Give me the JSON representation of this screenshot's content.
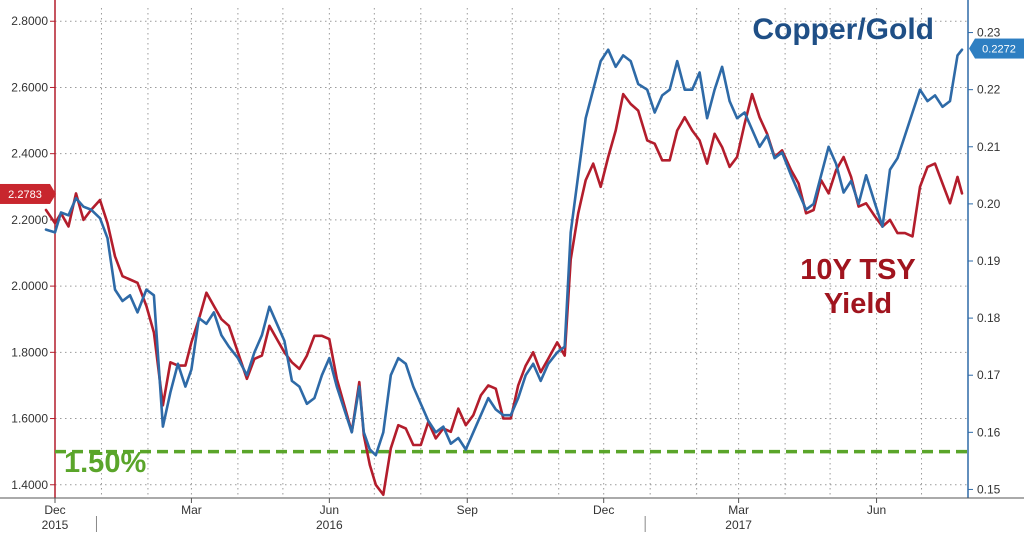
{
  "chart_data": {
    "type": "line",
    "left_axis": {
      "range": [
        1.36,
        2.84
      ],
      "ticks": [
        "1.4000",
        "1.6000",
        "1.8000",
        "2.0000",
        "2.2000",
        "2.4000",
        "2.6000",
        "2.8000"
      ],
      "tick_values": [
        1.4,
        1.6,
        1.8,
        2.0,
        2.2,
        2.4,
        2.6,
        2.8
      ]
    },
    "right_axis": {
      "range": [
        0.1485,
        0.2343
      ],
      "ticks": [
        "0.15",
        "0.16",
        "0.17",
        "0.18",
        "0.19",
        "0.20",
        "0.21",
        "0.22",
        "0.23"
      ],
      "tick_values": [
        0.15,
        0.16,
        0.17,
        0.18,
        0.19,
        0.2,
        0.21,
        0.22,
        0.23
      ]
    },
    "x_axis": {
      "start": "2015-12-01",
      "end": "2017-08-01",
      "month_labels": [
        {
          "date": "2015-12-01",
          "label": "Dec"
        },
        {
          "date": "2016-03-01",
          "label": "Mar"
        },
        {
          "date": "2016-06-01",
          "label": "Jun"
        },
        {
          "date": "2016-09-01",
          "label": "Sep"
        },
        {
          "date": "2016-12-01",
          "label": "Dec"
        },
        {
          "date": "2017-03-01",
          "label": "Mar"
        },
        {
          "date": "2017-06-01",
          "label": "Jun"
        }
      ],
      "year_labels": [
        {
          "date": "2015-12-01",
          "label": "2015"
        },
        {
          "date": "2016-06-01",
          "label": "2016"
        },
        {
          "date": "2017-03-01",
          "label": "2017"
        }
      ],
      "grid_dates": [
        "2016-01-01",
        "2016-02-01",
        "2016-03-01",
        "2016-04-01",
        "2016-05-01",
        "2016-06-01",
        "2016-07-01",
        "2016-08-01",
        "2016-09-01",
        "2016-10-01",
        "2016-11-01",
        "2016-12-01",
        "2017-01-01",
        "2017-02-01",
        "2017-03-01",
        "2017-04-01",
        "2017-05-01",
        "2017-06-01",
        "2017-07-01"
      ]
    },
    "grid": true,
    "series": [
      {
        "name": "10Y TSY Yield",
        "axis": "left",
        "color": "#b31d2c",
        "label_lines": [
          "10Y TSY",
          "Yield"
        ],
        "last_value_label": "2.2783",
        "points": [
          [
            "2015-11-25",
            2.23
          ],
          [
            "2015-12-01",
            2.19
          ],
          [
            "2015-12-05",
            2.22
          ],
          [
            "2015-12-10",
            2.18
          ],
          [
            "2015-12-15",
            2.28
          ],
          [
            "2015-12-20",
            2.2
          ],
          [
            "2015-12-25",
            2.23
          ],
          [
            "2015-12-31",
            2.26
          ],
          [
            "2016-01-05",
            2.19
          ],
          [
            "2016-01-10",
            2.09
          ],
          [
            "2016-01-15",
            2.03
          ],
          [
            "2016-01-20",
            2.02
          ],
          [
            "2016-01-25",
            2.01
          ],
          [
            "2016-01-31",
            1.94
          ],
          [
            "2016-02-05",
            1.86
          ],
          [
            "2016-02-11",
            1.64
          ],
          [
            "2016-02-16",
            1.77
          ],
          [
            "2016-02-21",
            1.76
          ],
          [
            "2016-02-26",
            1.76
          ],
          [
            "2016-03-01",
            1.83
          ],
          [
            "2016-03-06",
            1.9
          ],
          [
            "2016-03-11",
            1.98
          ],
          [
            "2016-03-16",
            1.94
          ],
          [
            "2016-03-21",
            1.9
          ],
          [
            "2016-03-26",
            1.88
          ],
          [
            "2016-04-01",
            1.8
          ],
          [
            "2016-04-07",
            1.72
          ],
          [
            "2016-04-12",
            1.78
          ],
          [
            "2016-04-17",
            1.79
          ],
          [
            "2016-04-22",
            1.88
          ],
          [
            "2016-04-27",
            1.84
          ],
          [
            "2016-05-02",
            1.8
          ],
          [
            "2016-05-07",
            1.77
          ],
          [
            "2016-05-12",
            1.75
          ],
          [
            "2016-05-17",
            1.79
          ],
          [
            "2016-05-22",
            1.85
          ],
          [
            "2016-05-27",
            1.85
          ],
          [
            "2016-06-01",
            1.84
          ],
          [
            "2016-06-06",
            1.72
          ],
          [
            "2016-06-11",
            1.64
          ],
          [
            "2016-06-16",
            1.56
          ],
          [
            "2016-06-21",
            1.71
          ],
          [
            "2016-06-24",
            1.55
          ],
          [
            "2016-06-28",
            1.46
          ],
          [
            "2016-07-02",
            1.4
          ],
          [
            "2016-07-07",
            1.37
          ],
          [
            "2016-07-12",
            1.51
          ],
          [
            "2016-07-17",
            1.58
          ],
          [
            "2016-07-22",
            1.57
          ],
          [
            "2016-07-27",
            1.52
          ],
          [
            "2016-08-01",
            1.52
          ],
          [
            "2016-08-06",
            1.59
          ],
          [
            "2016-08-11",
            1.54
          ],
          [
            "2016-08-16",
            1.57
          ],
          [
            "2016-08-21",
            1.56
          ],
          [
            "2016-08-26",
            1.63
          ],
          [
            "2016-08-31",
            1.58
          ],
          [
            "2016-09-05",
            1.61
          ],
          [
            "2016-09-10",
            1.67
          ],
          [
            "2016-09-15",
            1.7
          ],
          [
            "2016-09-20",
            1.69
          ],
          [
            "2016-09-25",
            1.6
          ],
          [
            "2016-09-30",
            1.6
          ],
          [
            "2016-10-05",
            1.7
          ],
          [
            "2016-10-10",
            1.76
          ],
          [
            "2016-10-15",
            1.8
          ],
          [
            "2016-10-20",
            1.74
          ],
          [
            "2016-10-25",
            1.78
          ],
          [
            "2016-10-31",
            1.83
          ],
          [
            "2016-11-05",
            1.79
          ],
          [
            "2016-11-09",
            2.08
          ],
          [
            "2016-11-14",
            2.22
          ],
          [
            "2016-11-19",
            2.32
          ],
          [
            "2016-11-24",
            2.37
          ],
          [
            "2016-11-29",
            2.3
          ],
          [
            "2016-12-04",
            2.39
          ],
          [
            "2016-12-09",
            2.47
          ],
          [
            "2016-12-14",
            2.58
          ],
          [
            "2016-12-19",
            2.55
          ],
          [
            "2016-12-24",
            2.53
          ],
          [
            "2016-12-30",
            2.44
          ],
          [
            "2017-01-04",
            2.43
          ],
          [
            "2017-01-09",
            2.38
          ],
          [
            "2017-01-14",
            2.38
          ],
          [
            "2017-01-19",
            2.47
          ],
          [
            "2017-01-24",
            2.51
          ],
          [
            "2017-01-29",
            2.47
          ],
          [
            "2017-02-03",
            2.44
          ],
          [
            "2017-02-08",
            2.37
          ],
          [
            "2017-02-13",
            2.46
          ],
          [
            "2017-02-18",
            2.42
          ],
          [
            "2017-02-23",
            2.36
          ],
          [
            "2017-02-28",
            2.39
          ],
          [
            "2017-03-05",
            2.49
          ],
          [
            "2017-03-10",
            2.58
          ],
          [
            "2017-03-15",
            2.51
          ],
          [
            "2017-03-20",
            2.46
          ],
          [
            "2017-03-25",
            2.39
          ],
          [
            "2017-03-30",
            2.41
          ],
          [
            "2017-04-05",
            2.35
          ],
          [
            "2017-04-10",
            2.31
          ],
          [
            "2017-04-15",
            2.22
          ],
          [
            "2017-04-20",
            2.23
          ],
          [
            "2017-04-25",
            2.32
          ],
          [
            "2017-04-30",
            2.28
          ],
          [
            "2017-05-05",
            2.35
          ],
          [
            "2017-05-10",
            2.39
          ],
          [
            "2017-05-15",
            2.33
          ],
          [
            "2017-05-20",
            2.24
          ],
          [
            "2017-05-25",
            2.25
          ],
          [
            "2017-05-31",
            2.21
          ],
          [
            "2017-06-05",
            2.18
          ],
          [
            "2017-06-10",
            2.2
          ],
          [
            "2017-06-15",
            2.16
          ],
          [
            "2017-06-20",
            2.16
          ],
          [
            "2017-06-25",
            2.15
          ],
          [
            "2017-06-30",
            2.3
          ],
          [
            "2017-07-05",
            2.36
          ],
          [
            "2017-07-10",
            2.37
          ],
          [
            "2017-07-15",
            2.31
          ],
          [
            "2017-07-20",
            2.25
          ],
          [
            "2017-07-25",
            2.33
          ],
          [
            "2017-07-28",
            2.28
          ]
        ]
      },
      {
        "name": "Copper/Gold",
        "axis": "right",
        "color": "#2e6aa7",
        "label_lines": [
          "Copper/Gold"
        ],
        "last_value_label": "0.2272",
        "points": [
          [
            "2015-11-25",
            0.1955
          ],
          [
            "2015-12-01",
            0.195
          ],
          [
            "2015-12-05",
            0.1985
          ],
          [
            "2015-12-10",
            0.198
          ],
          [
            "2015-12-15",
            0.201
          ],
          [
            "2015-12-20",
            0.1995
          ],
          [
            "2015-12-25",
            0.199
          ],
          [
            "2015-12-31",
            0.1975
          ],
          [
            "2016-01-05",
            0.194
          ],
          [
            "2016-01-10",
            0.185
          ],
          [
            "2016-01-15",
            0.183
          ],
          [
            "2016-01-20",
            0.184
          ],
          [
            "2016-01-25",
            0.181
          ],
          [
            "2016-01-31",
            0.185
          ],
          [
            "2016-02-05",
            0.184
          ],
          [
            "2016-02-11",
            0.161
          ],
          [
            "2016-02-16",
            0.167
          ],
          [
            "2016-02-21",
            0.172
          ],
          [
            "2016-02-26",
            0.168
          ],
          [
            "2016-03-01",
            0.171
          ],
          [
            "2016-03-06",
            0.18
          ],
          [
            "2016-03-11",
            0.179
          ],
          [
            "2016-03-16",
            0.181
          ],
          [
            "2016-03-21",
            0.177
          ],
          [
            "2016-03-26",
            0.175
          ],
          [
            "2016-04-01",
            0.173
          ],
          [
            "2016-04-07",
            0.17
          ],
          [
            "2016-04-12",
            0.174
          ],
          [
            "2016-04-17",
            0.177
          ],
          [
            "2016-04-22",
            0.182
          ],
          [
            "2016-04-27",
            0.179
          ],
          [
            "2016-05-02",
            0.176
          ],
          [
            "2016-05-07",
            0.169
          ],
          [
            "2016-05-12",
            0.168
          ],
          [
            "2016-05-17",
            0.165
          ],
          [
            "2016-05-22",
            0.166
          ],
          [
            "2016-05-27",
            0.17
          ],
          [
            "2016-06-01",
            0.173
          ],
          [
            "2016-06-06",
            0.168
          ],
          [
            "2016-06-11",
            0.164
          ],
          [
            "2016-06-16",
            0.16
          ],
          [
            "2016-06-21",
            0.168
          ],
          [
            "2016-06-24",
            0.16
          ],
          [
            "2016-06-28",
            0.157
          ],
          [
            "2016-07-02",
            0.156
          ],
          [
            "2016-07-07",
            0.16
          ],
          [
            "2016-07-12",
            0.17
          ],
          [
            "2016-07-17",
            0.173
          ],
          [
            "2016-07-22",
            0.172
          ],
          [
            "2016-07-27",
            0.168
          ],
          [
            "2016-08-01",
            0.165
          ],
          [
            "2016-08-06",
            0.162
          ],
          [
            "2016-08-11",
            0.16
          ],
          [
            "2016-08-16",
            0.161
          ],
          [
            "2016-08-21",
            0.158
          ],
          [
            "2016-08-26",
            0.159
          ],
          [
            "2016-08-31",
            0.157
          ],
          [
            "2016-09-05",
            0.16
          ],
          [
            "2016-09-10",
            0.163
          ],
          [
            "2016-09-15",
            0.166
          ],
          [
            "2016-09-20",
            0.164
          ],
          [
            "2016-09-25",
            0.163
          ],
          [
            "2016-09-30",
            0.163
          ],
          [
            "2016-10-05",
            0.166
          ],
          [
            "2016-10-10",
            0.17
          ],
          [
            "2016-10-15",
            0.172
          ],
          [
            "2016-10-20",
            0.169
          ],
          [
            "2016-10-25",
            0.172
          ],
          [
            "2016-10-31",
            0.174
          ],
          [
            "2016-11-05",
            0.175
          ],
          [
            "2016-11-09",
            0.195
          ],
          [
            "2016-11-14",
            0.205
          ],
          [
            "2016-11-19",
            0.215
          ],
          [
            "2016-11-24",
            0.22
          ],
          [
            "2016-11-29",
            0.225
          ],
          [
            "2016-12-04",
            0.227
          ],
          [
            "2016-12-09",
            0.224
          ],
          [
            "2016-12-14",
            0.226
          ],
          [
            "2016-12-19",
            0.225
          ],
          [
            "2016-12-24",
            0.221
          ],
          [
            "2016-12-30",
            0.22
          ],
          [
            "2017-01-04",
            0.216
          ],
          [
            "2017-01-09",
            0.219
          ],
          [
            "2017-01-14",
            0.22
          ],
          [
            "2017-01-19",
            0.225
          ],
          [
            "2017-01-24",
            0.22
          ],
          [
            "2017-01-29",
            0.22
          ],
          [
            "2017-02-03",
            0.223
          ],
          [
            "2017-02-08",
            0.215
          ],
          [
            "2017-02-13",
            0.22
          ],
          [
            "2017-02-18",
            0.224
          ],
          [
            "2017-02-23",
            0.218
          ],
          [
            "2017-02-28",
            0.215
          ],
          [
            "2017-03-05",
            0.216
          ],
          [
            "2017-03-10",
            0.213
          ],
          [
            "2017-03-15",
            0.21
          ],
          [
            "2017-03-20",
            0.212
          ],
          [
            "2017-03-25",
            0.208
          ],
          [
            "2017-03-30",
            0.209
          ],
          [
            "2017-04-05",
            0.205
          ],
          [
            "2017-04-10",
            0.202
          ],
          [
            "2017-04-15",
            0.199
          ],
          [
            "2017-04-20",
            0.2
          ],
          [
            "2017-04-25",
            0.205
          ],
          [
            "2017-04-30",
            0.21
          ],
          [
            "2017-05-05",
            0.207
          ],
          [
            "2017-05-10",
            0.202
          ],
          [
            "2017-05-15",
            0.204
          ],
          [
            "2017-05-20",
            0.2
          ],
          [
            "2017-05-25",
            0.205
          ],
          [
            "2017-05-31",
            0.2
          ],
          [
            "2017-06-05",
            0.196
          ],
          [
            "2017-06-10",
            0.206
          ],
          [
            "2017-06-15",
            0.208
          ],
          [
            "2017-06-20",
            0.212
          ],
          [
            "2017-06-25",
            0.216
          ],
          [
            "2017-06-30",
            0.22
          ],
          [
            "2017-07-05",
            0.218
          ],
          [
            "2017-07-10",
            0.219
          ],
          [
            "2017-07-15",
            0.217
          ],
          [
            "2017-07-20",
            0.218
          ],
          [
            "2017-07-25",
            0.226
          ],
          [
            "2017-07-28",
            0.227
          ]
        ]
      }
    ],
    "reference_line": {
      "axis": "left",
      "value": 1.5,
      "label": "1.50%",
      "color": "#5aa52a"
    }
  }
}
